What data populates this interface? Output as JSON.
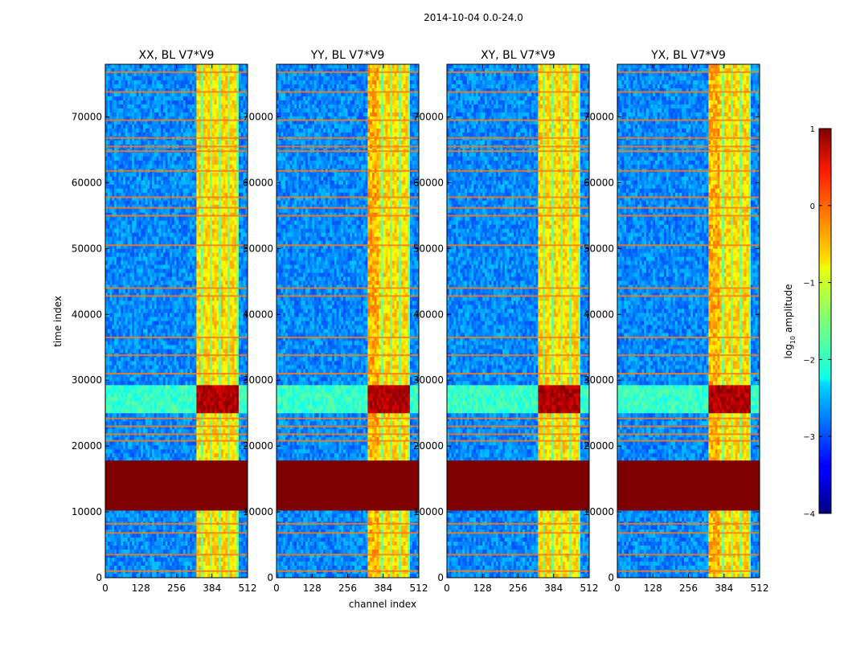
{
  "figure_title": "2014-10-04 0.0-24.0",
  "chart_data": {
    "type": "heatmap",
    "title": "2014-10-04 0.0-24.0",
    "xlabel": "channel index",
    "ylabel": "time index",
    "xlim": [
      0,
      512
    ],
    "ylim": [
      0,
      78000
    ],
    "xticks": [
      0,
      128,
      256,
      384,
      512
    ],
    "yticks": [
      0,
      10000,
      20000,
      30000,
      40000,
      50000,
      60000,
      70000
    ],
    "panels": [
      {
        "title": "XX, BL V7*V9",
        "polarization": "XX"
      },
      {
        "title": "YY, BL V7*V9",
        "polarization": "YY"
      },
      {
        "title": "XY, BL V7*V9",
        "polarization": "XY"
      },
      {
        "title": "YX, BL V7*V9",
        "polarization": "YX"
      }
    ],
    "colorbar": {
      "label_main": "log",
      "label_sub": "10",
      "label_suffix": " amplitude",
      "range": [
        -4,
        1
      ],
      "ticks": [
        -4,
        -3,
        -2,
        -1,
        0,
        1
      ],
      "tick_labels": [
        "−4",
        "−3",
        "−2",
        "−1",
        "0",
        "1"
      ],
      "colormap": "jet"
    },
    "flagged_time_range": [
      10200,
      17800
    ],
    "strong_channel_range": [
      330,
      480
    ],
    "rfi_burst_time": [
      25000,
      29000
    ]
  },
  "colors": {
    "flagged": "#7f0000",
    "background": "#ffffff"
  }
}
